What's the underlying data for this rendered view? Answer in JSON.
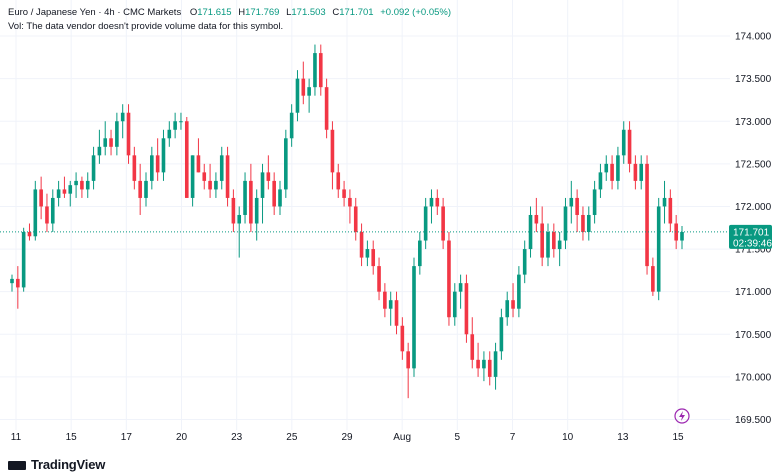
{
  "legend": {
    "symbol": "Euro / Japanese Yen · 4h · CMC Markets",
    "open_label": "O",
    "open": "171.615",
    "high_label": "H",
    "high": "171.769",
    "low_label": "L",
    "low": "171.503",
    "close_label": "C",
    "close": "171.701",
    "change": "+0.092 (+0.05%)",
    "volume_note": "Vol: The data vendor doesn't provide volume data for this symbol."
  },
  "price_tag": {
    "price": "171.701",
    "countdown": "02:39:46"
  },
  "brand": {
    "name": "TradingView"
  },
  "colors": {
    "up": "#089981",
    "down": "#f23645",
    "grid": "#f0f3fa",
    "axis_text": "#131722",
    "price_line": "#089981",
    "alert_icon": "#9c27b0"
  },
  "icons": {
    "alert": "lightning-icon"
  },
  "chart_data": {
    "type": "candlestick",
    "title": "",
    "ylim": [
      169.4,
      174.2
    ],
    "y_ticks": [
      "174.000",
      "173.500",
      "173.000",
      "172.500",
      "172.000",
      "171.500",
      "171.000",
      "170.500",
      "170.000",
      "169.500"
    ],
    "x_ticks": [
      "11",
      "15",
      "17",
      "20",
      "23",
      "25",
      "29",
      "Aug",
      "5",
      "7",
      "10",
      "13",
      "15"
    ],
    "grid": true,
    "last_price": 171.701,
    "candles": [
      [
        171.1,
        171.2,
        171.0,
        171.15
      ],
      [
        171.15,
        171.3,
        170.8,
        171.05
      ],
      [
        171.05,
        171.75,
        171.0,
        171.7
      ],
      [
        171.7,
        171.8,
        171.6,
        171.65
      ],
      [
        171.65,
        172.3,
        171.6,
        172.2
      ],
      [
        172.2,
        172.35,
        171.85,
        172.0
      ],
      [
        172.0,
        172.15,
        171.7,
        171.8
      ],
      [
        171.8,
        172.2,
        171.7,
        172.1
      ],
      [
        172.1,
        172.3,
        172.0,
        172.2
      ],
      [
        172.2,
        172.35,
        172.1,
        172.15
      ],
      [
        172.15,
        172.3,
        172.0,
        172.25
      ],
      [
        172.25,
        172.4,
        172.1,
        172.3
      ],
      [
        172.3,
        172.35,
        172.1,
        172.2
      ],
      [
        172.2,
        172.4,
        172.1,
        172.3
      ],
      [
        172.3,
        172.7,
        172.2,
        172.6
      ],
      [
        172.6,
        172.9,
        172.5,
        172.7
      ],
      [
        172.7,
        173.0,
        172.6,
        172.8
      ],
      [
        172.8,
        172.9,
        172.6,
        172.7
      ],
      [
        172.7,
        173.1,
        172.6,
        173.0
      ],
      [
        173.0,
        173.2,
        172.8,
        173.1
      ],
      [
        173.1,
        173.2,
        172.5,
        172.6
      ],
      [
        172.6,
        172.7,
        172.2,
        172.3
      ],
      [
        172.3,
        172.5,
        171.9,
        172.1
      ],
      [
        172.1,
        172.4,
        172.0,
        172.3
      ],
      [
        172.3,
        172.7,
        172.2,
        172.6
      ],
      [
        172.6,
        172.8,
        172.3,
        172.4
      ],
      [
        172.4,
        172.9,
        172.3,
        172.8
      ],
      [
        172.8,
        173.0,
        172.7,
        172.9
      ],
      [
        172.9,
        173.1,
        172.8,
        173.0
      ],
      [
        173.0,
        173.1,
        172.9,
        173.0
      ],
      [
        173.0,
        173.05,
        172.1,
        172.1
      ],
      [
        172.1,
        172.6,
        172.0,
        172.6
      ],
      [
        172.6,
        172.8,
        172.4,
        172.4
      ],
      [
        172.4,
        172.5,
        172.2,
        172.3
      ],
      [
        172.3,
        172.5,
        172.1,
        172.2
      ],
      [
        172.2,
        172.4,
        172.1,
        172.3
      ],
      [
        172.3,
        172.7,
        172.2,
        172.6
      ],
      [
        172.6,
        172.7,
        172.0,
        172.1
      ],
      [
        172.1,
        172.2,
        171.7,
        171.8
      ],
      [
        171.8,
        172.0,
        171.4,
        171.9
      ],
      [
        171.9,
        172.4,
        171.8,
        172.3
      ],
      [
        172.3,
        172.5,
        171.7,
        171.8
      ],
      [
        171.8,
        172.2,
        171.6,
        172.1
      ],
      [
        172.1,
        172.5,
        171.8,
        172.4
      ],
      [
        172.4,
        172.6,
        172.2,
        172.3
      ],
      [
        172.3,
        172.4,
        171.9,
        172.0
      ],
      [
        172.0,
        172.3,
        171.9,
        172.2
      ],
      [
        172.2,
        172.9,
        172.1,
        172.8
      ],
      [
        172.8,
        173.2,
        172.7,
        173.1
      ],
      [
        173.1,
        173.6,
        173.0,
        173.5
      ],
      [
        173.5,
        173.7,
        173.2,
        173.3
      ],
      [
        173.3,
        173.5,
        173.1,
        173.4
      ],
      [
        173.4,
        173.9,
        173.3,
        173.8
      ],
      [
        173.8,
        173.9,
        173.3,
        173.4
      ],
      [
        173.4,
        173.5,
        172.8,
        172.9
      ],
      [
        172.9,
        173.0,
        172.2,
        172.4
      ],
      [
        172.4,
        172.5,
        172.1,
        172.2
      ],
      [
        172.2,
        172.3,
        172.0,
        172.1
      ],
      [
        172.1,
        172.2,
        171.8,
        172.0
      ],
      [
        172.0,
        172.1,
        171.6,
        171.7
      ],
      [
        171.7,
        171.8,
        171.3,
        171.4
      ],
      [
        171.4,
        171.6,
        171.3,
        171.5
      ],
      [
        171.5,
        171.6,
        171.2,
        171.3
      ],
      [
        171.3,
        171.4,
        170.9,
        171.0
      ],
      [
        171.0,
        171.1,
        170.7,
        170.8
      ],
      [
        170.8,
        171.0,
        170.6,
        170.9
      ],
      [
        170.9,
        171.0,
        170.5,
        170.6
      ],
      [
        170.6,
        170.7,
        170.2,
        170.3
      ],
      [
        170.3,
        170.4,
        169.75,
        170.1
      ],
      [
        170.1,
        171.4,
        170.0,
        171.3
      ],
      [
        171.3,
        171.7,
        171.2,
        171.6
      ],
      [
        171.6,
        172.1,
        171.5,
        172.0
      ],
      [
        172.0,
        172.2,
        171.8,
        172.1
      ],
      [
        172.1,
        172.2,
        171.9,
        172.0
      ],
      [
        172.0,
        172.1,
        171.5,
        171.6
      ],
      [
        171.6,
        171.7,
        170.6,
        170.7
      ],
      [
        170.7,
        171.1,
        170.6,
        171.0
      ],
      [
        171.0,
        171.2,
        170.8,
        171.1
      ],
      [
        171.1,
        171.2,
        170.4,
        170.5
      ],
      [
        170.5,
        170.7,
        170.1,
        170.2
      ],
      [
        170.2,
        170.4,
        170.0,
        170.1
      ],
      [
        170.1,
        170.3,
        169.95,
        170.2
      ],
      [
        170.2,
        170.3,
        169.9,
        170.0
      ],
      [
        170.0,
        170.4,
        169.85,
        170.3
      ],
      [
        170.3,
        170.8,
        170.2,
        170.7
      ],
      [
        170.7,
        171.0,
        170.6,
        170.9
      ],
      [
        170.9,
        171.1,
        170.7,
        170.8
      ],
      [
        170.8,
        171.3,
        170.7,
        171.2
      ],
      [
        171.2,
        171.6,
        171.1,
        171.5
      ],
      [
        171.5,
        172.0,
        171.4,
        171.9
      ],
      [
        171.9,
        172.1,
        171.7,
        171.8
      ],
      [
        171.8,
        172.0,
        171.3,
        171.4
      ],
      [
        171.4,
        171.8,
        171.3,
        171.7
      ],
      [
        171.7,
        171.8,
        171.4,
        171.5
      ],
      [
        171.5,
        171.7,
        171.3,
        171.6
      ],
      [
        171.6,
        172.1,
        171.5,
        172.0
      ],
      [
        172.0,
        172.3,
        171.8,
        172.1
      ],
      [
        172.1,
        172.2,
        171.7,
        171.9
      ],
      [
        171.9,
        172.0,
        171.6,
        171.7
      ],
      [
        171.7,
        172.0,
        171.6,
        171.9
      ],
      [
        171.9,
        172.3,
        171.8,
        172.2
      ],
      [
        172.2,
        172.5,
        172.1,
        172.4
      ],
      [
        172.4,
        172.6,
        172.3,
        172.5
      ],
      [
        172.5,
        172.6,
        172.2,
        172.3
      ],
      [
        172.3,
        172.7,
        172.2,
        172.6
      ],
      [
        172.6,
        173.0,
        172.5,
        172.9
      ],
      [
        172.9,
        173.0,
        172.4,
        172.5
      ],
      [
        172.5,
        172.6,
        172.2,
        172.3
      ],
      [
        172.3,
        172.6,
        172.2,
        172.5
      ],
      [
        172.5,
        172.6,
        171.2,
        171.3
      ],
      [
        171.3,
        171.4,
        170.95,
        171.0
      ],
      [
        171.0,
        172.1,
        170.9,
        172.0
      ],
      [
        172.0,
        172.3,
        171.8,
        172.1
      ],
      [
        172.1,
        172.2,
        171.7,
        171.8
      ],
      [
        171.8,
        171.9,
        171.5,
        171.6
      ],
      [
        171.6,
        171.77,
        171.5,
        171.7
      ]
    ]
  }
}
